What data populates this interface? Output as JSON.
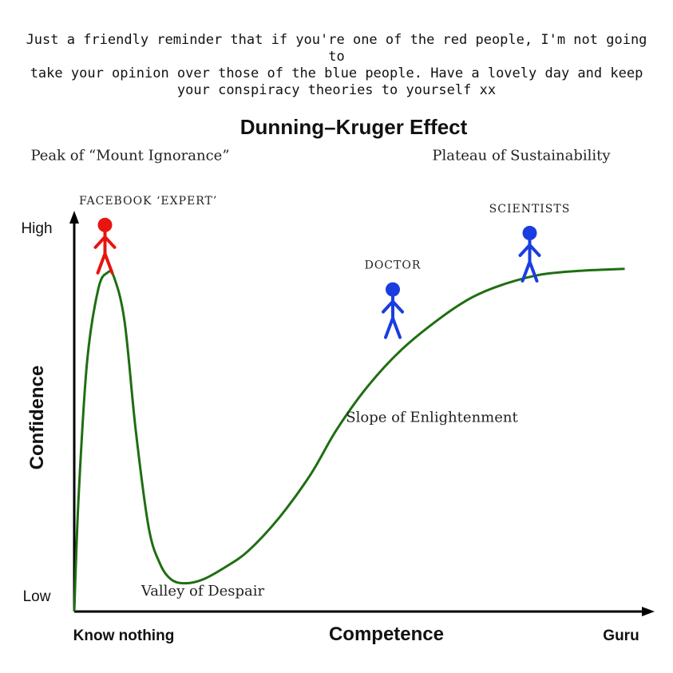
{
  "caption": {
    "lines": [
      "Just a friendly reminder that if you're one of the red people, I'm not going to",
      "take your opinion over those of the blue people. Have a lovely day and keep",
      "your conspiracy theories to yourself xx"
    ]
  },
  "chart_data": {
    "type": "line",
    "title": "Dunning–Kruger Effect",
    "xlabel": "Competence",
    "ylabel": "Confidence",
    "x_ticks": [
      "Know nothing",
      "Guru"
    ],
    "y_ticks": [
      "High",
      "Low"
    ],
    "xlim": [
      0,
      100
    ],
    "ylim": [
      0,
      100
    ],
    "grid": false,
    "line_color": "#1f6e12",
    "series": [
      {
        "x": [
          0,
          0.8,
          2.3,
          4.3,
          5.9,
          7.1,
          9.0,
          11.0,
          13.3,
          15.3,
          17.3,
          19.8,
          23.1,
          27.0,
          31.1,
          36.5,
          42.3,
          46.9,
          52.6,
          58.6,
          65.7,
          71.3,
          76.5,
          83.2,
          90.4,
          98.5
        ],
        "y": [
          0,
          29,
          62,
          80,
          84,
          83,
          72,
          45,
          21,
          12,
          8,
          7,
          8,
          11,
          15,
          23,
          34,
          45,
          56,
          65,
          73,
          78,
          81,
          83.5,
          84.5,
          85
        ]
      }
    ],
    "annotations": [
      {
        "text": "Peak of “Mount Ignorance”",
        "x": 10,
        "y": 112
      },
      {
        "text": "Plateau of Sustainability",
        "x": 80,
        "y": 112
      },
      {
        "text": "Valley of Despair",
        "x": 23,
        "y": 4
      },
      {
        "text": "Slope of Enlightenment",
        "x": 64,
        "y": 47
      }
    ],
    "figures": [
      {
        "label": "FACEBOOK ‘EXPERT’",
        "color": "#e8140f",
        "x": 5.5,
        "y": 84
      },
      {
        "label": "DOCTOR",
        "color": "#1a3de0",
        "x": 57,
        "y": 68
      },
      {
        "label": "SCIENTISTS",
        "color": "#1a3de0",
        "x": 81.5,
        "y": 82
      }
    ]
  }
}
